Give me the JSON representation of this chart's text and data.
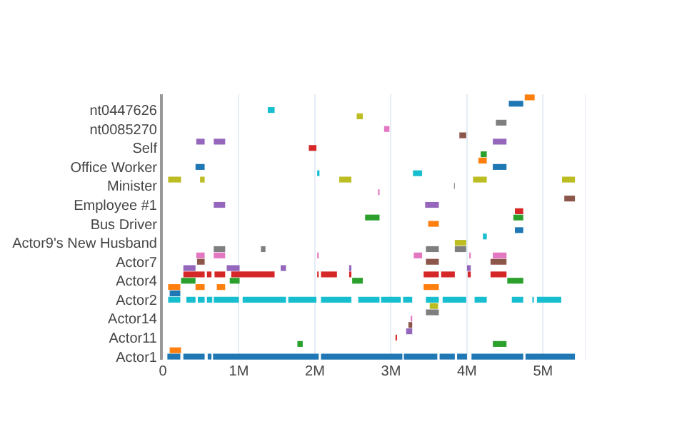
{
  "chart_data": {
    "type": "bar",
    "orientation": "horizontal",
    "grid": "x",
    "categories": [
      null,
      null,
      "nt0447626",
      null,
      null,
      "nt0085270",
      null,
      null,
      "Self",
      null,
      null,
      "Office Worker",
      null,
      null,
      "Minister",
      null,
      null,
      "Employee #1",
      null,
      null,
      "Bus Driver",
      null,
      null,
      "Actor9's New Husband",
      null,
      null,
      "Actor7",
      null,
      null,
      "Actor4",
      null,
      null,
      "Actor2",
      null,
      null,
      "Actor14",
      null,
      null,
      "Actor11",
      null,
      null,
      "Actor1"
    ],
    "xlim": [
      0,
      5560000
    ],
    "xticks": [
      0,
      {
        "value": 1000000,
        "label": "1M"
      },
      {
        "value": 2000000,
        "label": "2M"
      },
      {
        "value": 3000000,
        "label": "3M"
      },
      {
        "value": 4000000,
        "label": "4M"
      },
      {
        "value": 5000000,
        "label": "5M"
      }
    ],
    "series": [
      {
        "colors": [
          "#ff7f0e",
          "#1f77b4",
          "#17becf",
          "#bcbd22",
          "#7f7f7f",
          "#e377c2",
          "#8c564b",
          "#9467bd",
          "#d62728",
          "#2ca02c",
          "#ff7f0e",
          "#1f77b4",
          "#17becf",
          "#bcbd22",
          "#7f7f7f",
          "#e377c2",
          "#8c564b",
          "#9467bd",
          "#d62728",
          "#2ca02c",
          "#ff7f0e",
          "#1f77b4",
          "#17becf",
          "#bcbd22",
          "#7f7f7f",
          "#e377c2",
          "#8c564b",
          "#9467bd",
          "#d62728",
          "#2ca02c",
          "#ff7f0e",
          "#1f77b4",
          "#17becf",
          "#bcbd22",
          "#7f7f7f",
          "#e377c2",
          "#8c564b",
          "#9467bd",
          "#d62728",
          "#2ca02c",
          "#ff7f0e",
          "#1f77b4"
        ],
        "base": [
          4760000,
          4550000,
          1380000,
          2550000,
          4380000,
          2910000,
          3900000,
          440000,
          1920000,
          4180000,
          4150000,
          430000,
          2030000,
          70000,
          3830000,
          2830000,
          5280000,
          670000,
          4630000,
          2660000,
          3490000,
          4630000,
          4210000,
          3840000,
          670000,
          440000,
          450000,
          270000,
          270000,
          240000,
          70000,
          90000,
          70000,
          3510000,
          3460000,
          3260000,
          3230000,
          3200000,
          3060000,
          1770000,
          90000,
          60000
        ],
        "values": [
          130000,
          190000,
          90000,
          80000,
          140000,
          70000,
          90000,
          110000,
          100000,
          80000,
          110000,
          120000,
          30000,
          170000,
          10000,
          20000,
          140000,
          150000,
          110000,
          190000,
          140000,
          110000,
          50000,
          150000,
          150000,
          110000,
          100000,
          160000,
          280000,
          190000,
          160000,
          140000,
          160000,
          110000,
          170000,
          20000,
          50000,
          80000,
          20000,
          70000,
          150000,
          170000
        ]
      },
      {
        "colors": [
          "#ff7f0e",
          "#1f77b4",
          "#17becf",
          "#bcbd22",
          "#7f7f7f",
          "#e377c2",
          "#8c564b",
          "#9467bd",
          "#d62728",
          "#2ca02c",
          "#ff7f0e",
          "#1f77b4",
          "#17becf",
          "#bcbd22",
          "#7f7f7f",
          "#e377c2",
          "#8c564b",
          "#9467bd",
          "#d62728",
          "#2ca02c",
          "#ff7f0e",
          "#1f77b4",
          "#17becf",
          "#bcbd22",
          "#7f7f7f",
          "#e377c2",
          "#8c564b",
          "#9467bd",
          "#d62728",
          "#2ca02c",
          "#ff7f0e",
          "#1f77b4",
          "#17becf",
          "#bcbd22",
          "#7f7f7f",
          "#e377c2",
          "#8c564b",
          "#9467bd",
          "#d62728",
          "#2ca02c",
          "#ff7f0e",
          "#1f77b4"
        ],
        "base": [
          null,
          null,
          null,
          null,
          null,
          null,
          null,
          670000,
          null,
          null,
          null,
          4340000,
          3290000,
          490000,
          null,
          null,
          null,
          3450000,
          null,
          4610000,
          null,
          null,
          null,
          null,
          1290000,
          670000,
          3460000,
          840000,
          580000,
          880000,
          430000,
          null,
          310000,
          null,
          null,
          null,
          null,
          null,
          null,
          4340000,
          null,
          270000
        ],
        "values": [
          null,
          null,
          null,
          null,
          null,
          null,
          null,
          150000,
          null,
          null,
          null,
          180000,
          120000,
          60000,
          null,
          null,
          null,
          180000,
          null,
          130000,
          null,
          null,
          null,
          null,
          60000,
          150000,
          170000,
          170000,
          60000,
          130000,
          120000,
          null,
          120000,
          null,
          null,
          null,
          null,
          null,
          null,
          180000,
          null,
          280000
        ]
      },
      {
        "colors": [
          "#ff7f0e",
          "#1f77b4",
          "#17becf",
          "#bcbd22",
          "#7f7f7f",
          "#e377c2",
          "#8c564b",
          "#9467bd",
          "#d62728",
          "#2ca02c",
          "#ff7f0e",
          "#1f77b4",
          "#17becf",
          "#bcbd22",
          "#7f7f7f",
          "#e377c2",
          "#8c564b",
          "#9467bd",
          "#d62728",
          "#2ca02c",
          "#ff7f0e",
          "#1f77b4",
          "#17becf",
          "#bcbd22",
          "#7f7f7f",
          "#e377c2",
          "#8c564b",
          "#9467bd",
          "#d62728",
          "#2ca02c",
          "#ff7f0e",
          "#1f77b4",
          "#17becf",
          "#bcbd22",
          "#7f7f7f",
          "#e377c2",
          "#8c564b",
          "#9467bd",
          "#d62728",
          "#2ca02c",
          "#ff7f0e",
          "#1f77b4"
        ],
        "base": [
          null,
          null,
          null,
          null,
          null,
          null,
          null,
          4340000,
          null,
          null,
          null,
          null,
          null,
          2320000,
          null,
          null,
          null,
          null,
          null,
          null,
          null,
          null,
          null,
          null,
          3460000,
          2030000,
          4310000,
          1550000,
          680000,
          2490000,
          710000,
          null,
          460000,
          null,
          null,
          null,
          null,
          null,
          null,
          null,
          null,
          590000
        ],
        "values": [
          null,
          null,
          null,
          null,
          null,
          null,
          null,
          180000,
          null,
          null,
          null,
          null,
          null,
          160000,
          null,
          null,
          null,
          null,
          null,
          null,
          null,
          null,
          null,
          null,
          170000,
          20000,
          210000,
          70000,
          140000,
          140000,
          110000,
          null,
          90000,
          null,
          null,
          null,
          null,
          null,
          null,
          null,
          null,
          50000
        ]
      },
      {
        "colors": [
          "#ff7f0e",
          "#1f77b4",
          "#17becf",
          "#bcbd22",
          "#7f7f7f",
          "#e377c2",
          "#8c564b",
          "#9467bd",
          "#d62728",
          "#2ca02c",
          "#ff7f0e",
          "#1f77b4",
          "#17becf",
          "#bcbd22",
          "#7f7f7f",
          "#e377c2",
          "#8c564b",
          "#9467bd",
          "#d62728",
          "#2ca02c",
          "#ff7f0e",
          "#1f77b4",
          "#17becf",
          "#bcbd22",
          "#7f7f7f",
          "#e377c2",
          "#8c564b",
          "#9467bd",
          "#d62728",
          "#2ca02c",
          "#ff7f0e",
          "#1f77b4",
          "#17becf",
          "#bcbd22",
          "#7f7f7f",
          "#e377c2",
          "#8c564b",
          "#9467bd",
          "#d62728",
          "#2ca02c",
          "#ff7f0e",
          "#1f77b4"
        ],
        "base": [
          null,
          null,
          null,
          null,
          null,
          null,
          null,
          null,
          null,
          null,
          null,
          null,
          null,
          4080000,
          null,
          null,
          null,
          null,
          null,
          null,
          null,
          null,
          null,
          null,
          3840000,
          3300000,
          null,
          2450000,
          900000,
          4530000,
          3430000,
          null,
          580000,
          null,
          null,
          null,
          null,
          null,
          null,
          null,
          null,
          660000
        ],
        "values": [
          null,
          null,
          null,
          null,
          null,
          null,
          null,
          null,
          null,
          null,
          null,
          null,
          null,
          180000,
          null,
          null,
          null,
          null,
          null,
          null,
          null,
          null,
          null,
          null,
          150000,
          110000,
          null,
          30000,
          570000,
          210000,
          200000,
          null,
          70000,
          null,
          null,
          null,
          null,
          null,
          null,
          null,
          null,
          1390000
        ]
      },
      {
        "colors": [
          "#ff7f0e",
          "#1f77b4",
          "#17becf",
          "#bcbd22",
          "#7f7f7f",
          "#e377c2",
          "#8c564b",
          "#9467bd",
          "#d62728",
          "#2ca02c",
          "#ff7f0e",
          "#1f77b4",
          "#17becf",
          "#bcbd22",
          "#7f7f7f",
          "#e377c2",
          "#8c564b",
          "#9467bd",
          "#d62728",
          "#2ca02c",
          "#ff7f0e",
          "#1f77b4",
          "#17becf",
          "#bcbd22",
          "#7f7f7f",
          "#e377c2",
          "#8c564b",
          "#9467bd",
          "#d62728",
          "#2ca02c",
          "#ff7f0e",
          "#1f77b4",
          "#17becf",
          "#bcbd22",
          "#7f7f7f",
          "#e377c2",
          "#8c564b",
          "#9467bd",
          "#d62728",
          "#2ca02c",
          "#ff7f0e",
          "#1f77b4"
        ],
        "base": [
          null,
          null,
          null,
          null,
          null,
          null,
          null,
          null,
          null,
          null,
          null,
          null,
          null,
          5250000,
          null,
          null,
          null,
          null,
          null,
          null,
          null,
          null,
          null,
          null,
          null,
          4030000,
          null,
          4000000,
          2030000,
          null,
          null,
          null,
          670000,
          null,
          null,
          null,
          null,
          null,
          null,
          null,
          null,
          2080000
        ],
        "values": [
          null,
          null,
          null,
          null,
          null,
          null,
          null,
          null,
          null,
          null,
          null,
          null,
          null,
          170000,
          null,
          null,
          null,
          null,
          null,
          null,
          null,
          null,
          null,
          null,
          null,
          20000,
          null,
          50000,
          20000,
          null,
          null,
          null,
          330000,
          null,
          null,
          null,
          null,
          null,
          null,
          null,
          null,
          1070000
        ]
      },
      {
        "colors": [
          "#ff7f0e",
          "#1f77b4",
          "#17becf",
          "#bcbd22",
          "#7f7f7f",
          "#e377c2",
          "#8c564b",
          "#9467bd",
          "#d62728",
          "#2ca02c",
          "#ff7f0e",
          "#1f77b4",
          "#17becf",
          "#bcbd22",
          "#7f7f7f",
          "#e377c2",
          "#8c564b",
          "#9467bd",
          "#d62728",
          "#2ca02c",
          "#ff7f0e",
          "#1f77b4",
          "#17becf",
          "#bcbd22",
          "#7f7f7f",
          "#e377c2",
          "#8c564b",
          "#9467bd",
          "#d62728",
          "#2ca02c",
          "#ff7f0e",
          "#1f77b4",
          "#17becf",
          "#bcbd22",
          "#7f7f7f",
          "#e377c2",
          "#8c564b",
          "#9467bd",
          "#d62728",
          "#2ca02c",
          "#ff7f0e",
          "#1f77b4"
        ],
        "base": [
          null,
          null,
          null,
          null,
          null,
          null,
          null,
          null,
          null,
          null,
          null,
          null,
          null,
          null,
          null,
          null,
          null,
          null,
          null,
          null,
          null,
          null,
          null,
          null,
          null,
          4340000,
          null,
          null,
          2080000,
          null,
          null,
          null,
          1050000,
          null,
          null,
          null,
          null,
          null,
          null,
          null,
          null,
          3170000
        ],
        "values": [
          null,
          null,
          null,
          null,
          null,
          null,
          null,
          null,
          null,
          null,
          null,
          null,
          null,
          null,
          null,
          null,
          null,
          null,
          null,
          null,
          null,
          null,
          null,
          null,
          null,
          180000,
          null,
          null,
          210000,
          null,
          null,
          null,
          570000,
          null,
          null,
          null,
          null,
          null,
          null,
          null,
          null,
          440000
        ]
      },
      {
        "colors": [
          "#ff7f0e",
          "#1f77b4",
          "#17becf",
          "#bcbd22",
          "#7f7f7f",
          "#e377c2",
          "#8c564b",
          "#9467bd",
          "#d62728",
          "#2ca02c",
          "#ff7f0e",
          "#1f77b4",
          "#17becf",
          "#bcbd22",
          "#7f7f7f",
          "#e377c2",
          "#8c564b",
          "#9467bd",
          "#d62728",
          "#2ca02c",
          "#ff7f0e",
          "#1f77b4",
          "#17becf",
          "#bcbd22",
          "#7f7f7f",
          "#e377c2",
          "#8c564b",
          "#9467bd",
          "#d62728",
          "#2ca02c",
          "#ff7f0e",
          "#1f77b4",
          "#17becf",
          "#bcbd22",
          "#7f7f7f",
          "#e377c2",
          "#8c564b",
          "#9467bd",
          "#d62728",
          "#2ca02c",
          "#ff7f0e",
          "#1f77b4"
        ],
        "base": [
          null,
          null,
          null,
          null,
          null,
          null,
          null,
          null,
          null,
          null,
          null,
          null,
          null,
          null,
          null,
          null,
          null,
          null,
          null,
          null,
          null,
          null,
          null,
          null,
          null,
          null,
          null,
          null,
          2450000,
          null,
          null,
          null,
          1650000,
          null,
          null,
          null,
          null,
          null,
          null,
          null,
          null,
          3640000
        ],
        "values": [
          null,
          null,
          null,
          null,
          null,
          null,
          null,
          null,
          null,
          null,
          null,
          null,
          null,
          null,
          null,
          null,
          null,
          null,
          null,
          null,
          null,
          null,
          null,
          null,
          null,
          null,
          null,
          null,
          30000,
          null,
          null,
          null,
          370000,
          null,
          null,
          null,
          null,
          null,
          null,
          null,
          null,
          200000
        ]
      },
      {
        "colors": [
          "#ff7f0e",
          "#1f77b4",
          "#17becf",
          "#bcbd22",
          "#7f7f7f",
          "#e377c2",
          "#8c564b",
          "#9467bd",
          "#d62728",
          "#2ca02c",
          "#ff7f0e",
          "#1f77b4",
          "#17becf",
          "#bcbd22",
          "#7f7f7f",
          "#e377c2",
          "#8c564b",
          "#9467bd",
          "#d62728",
          "#2ca02c",
          "#ff7f0e",
          "#1f77b4",
          "#17becf",
          "#bcbd22",
          "#7f7f7f",
          "#e377c2",
          "#8c564b",
          "#9467bd",
          "#d62728",
          "#2ca02c",
          "#ff7f0e",
          "#1f77b4",
          "#17becf",
          "#bcbd22",
          "#7f7f7f",
          "#e377c2",
          "#8c564b",
          "#9467bd",
          "#d62728",
          "#2ca02c",
          "#ff7f0e",
          "#1f77b4"
        ],
        "base": [
          null,
          null,
          null,
          null,
          null,
          null,
          null,
          null,
          null,
          null,
          null,
          null,
          null,
          null,
          null,
          null,
          null,
          null,
          null,
          null,
          null,
          null,
          null,
          null,
          null,
          null,
          null,
          null,
          3430000,
          null,
          null,
          null,
          2080000,
          null,
          null,
          null,
          null,
          null,
          null,
          null,
          null,
          3870000
        ],
        "values": [
          null,
          null,
          null,
          null,
          null,
          null,
          null,
          null,
          null,
          null,
          null,
          null,
          null,
          null,
          null,
          null,
          null,
          null,
          null,
          null,
          null,
          null,
          null,
          null,
          null,
          null,
          null,
          null,
          200000,
          null,
          null,
          null,
          400000,
          null,
          null,
          null,
          null,
          null,
          null,
          null,
          null,
          130000
        ]
      },
      {
        "colors": [
          "#ff7f0e",
          "#1f77b4",
          "#17becf",
          "#bcbd22",
          "#7f7f7f",
          "#e377c2",
          "#8c564b",
          "#9467bd",
          "#d62728",
          "#2ca02c",
          "#ff7f0e",
          "#1f77b4",
          "#17becf",
          "#bcbd22",
          "#7f7f7f",
          "#e377c2",
          "#8c564b",
          "#9467bd",
          "#d62728",
          "#2ca02c",
          "#ff7f0e",
          "#1f77b4",
          "#17becf",
          "#bcbd22",
          "#7f7f7f",
          "#e377c2",
          "#8c564b",
          "#9467bd",
          "#d62728",
          "#2ca02c",
          "#ff7f0e",
          "#1f77b4",
          "#17becf",
          "#bcbd22",
          "#7f7f7f",
          "#e377c2",
          "#8c564b",
          "#9467bd",
          "#d62728",
          "#2ca02c",
          "#ff7f0e",
          "#1f77b4"
        ],
        "base": [
          null,
          null,
          null,
          null,
          null,
          null,
          null,
          null,
          null,
          null,
          null,
          null,
          null,
          null,
          null,
          null,
          null,
          null,
          null,
          null,
          null,
          null,
          null,
          null,
          null,
          null,
          null,
          null,
          3660000,
          null,
          null,
          null,
          2570000,
          null,
          null,
          null,
          null,
          null,
          null,
          null,
          null,
          4060000
        ],
        "values": [
          null,
          null,
          null,
          null,
          null,
          null,
          null,
          null,
          null,
          null,
          null,
          null,
          null,
          null,
          null,
          null,
          null,
          null,
          null,
          null,
          null,
          null,
          null,
          null,
          null,
          null,
          null,
          null,
          180000,
          null,
          null,
          null,
          280000,
          null,
          null,
          null,
          null,
          null,
          null,
          null,
          null,
          680000
        ]
      },
      {
        "colors": [
          "#ff7f0e",
          "#1f77b4",
          "#17becf",
          "#bcbd22",
          "#7f7f7f",
          "#e377c2",
          "#8c564b",
          "#9467bd",
          "#d62728",
          "#2ca02c",
          "#ff7f0e",
          "#1f77b4",
          "#17becf",
          "#bcbd22",
          "#7f7f7f",
          "#e377c2",
          "#8c564b",
          "#9467bd",
          "#d62728",
          "#2ca02c",
          "#ff7f0e",
          "#1f77b4",
          "#17becf",
          "#bcbd22",
          "#7f7f7f",
          "#e377c2",
          "#8c564b",
          "#9467bd",
          "#d62728",
          "#2ca02c",
          "#ff7f0e",
          "#1f77b4",
          "#17becf",
          "#bcbd22",
          "#7f7f7f",
          "#e377c2",
          "#8c564b",
          "#9467bd",
          "#d62728",
          "#2ca02c",
          "#ff7f0e",
          "#1f77b4"
        ],
        "base": [
          null,
          null,
          null,
          null,
          null,
          null,
          null,
          null,
          null,
          null,
          null,
          null,
          null,
          null,
          null,
          null,
          null,
          null,
          null,
          null,
          null,
          null,
          null,
          null,
          null,
          null,
          null,
          null,
          4010000,
          null,
          null,
          null,
          2870000,
          null,
          null,
          null,
          null,
          null,
          null,
          null,
          null,
          4770000
        ],
        "values": [
          null,
          null,
          null,
          null,
          null,
          null,
          null,
          null,
          null,
          null,
          null,
          null,
          null,
          null,
          null,
          null,
          null,
          null,
          null,
          null,
          null,
          null,
          null,
          null,
          null,
          null,
          null,
          null,
          40000,
          null,
          null,
          null,
          260000,
          null,
          null,
          null,
          null,
          null,
          null,
          null,
          null,
          650000
        ]
      },
      {
        "colors": [
          "#ff7f0e",
          "#1f77b4",
          "#17becf",
          "#bcbd22",
          "#7f7f7f",
          "#e377c2",
          "#8c564b",
          "#9467bd",
          "#d62728",
          "#2ca02c",
          "#ff7f0e",
          "#1f77b4",
          "#17becf",
          "#bcbd22",
          "#7f7f7f",
          "#e377c2",
          "#8c564b",
          "#9467bd",
          "#d62728",
          "#2ca02c",
          "#ff7f0e",
          "#1f77b4",
          "#17becf",
          "#bcbd22",
          "#7f7f7f",
          "#e377c2",
          "#8c564b",
          "#9467bd",
          "#d62728",
          "#2ca02c",
          "#ff7f0e",
          "#1f77b4",
          "#17becf",
          "#bcbd22",
          "#7f7f7f",
          "#e377c2",
          "#8c564b",
          "#9467bd",
          "#d62728",
          "#2ca02c",
          "#ff7f0e",
          "#1f77b4"
        ],
        "base": [
          null,
          null,
          null,
          null,
          null,
          null,
          null,
          null,
          null,
          null,
          null,
          null,
          null,
          null,
          null,
          null,
          null,
          null,
          null,
          null,
          null,
          null,
          null,
          null,
          null,
          null,
          null,
          null,
          4310000,
          null,
          null,
          null,
          3160000,
          null,
          null,
          null,
          null,
          null,
          null,
          null,
          null,
          null
        ],
        "values": [
          null,
          null,
          null,
          null,
          null,
          null,
          null,
          null,
          null,
          null,
          null,
          null,
          null,
          null,
          null,
          null,
          null,
          null,
          null,
          null,
          null,
          null,
          null,
          null,
          null,
          null,
          null,
          null,
          210000,
          null,
          null,
          null,
          120000,
          null,
          null,
          null,
          null,
          null,
          null,
          null,
          null,
          null
        ]
      },
      {
        "color": "#17becf",
        "base": [
          null,
          null,
          null,
          null,
          null,
          null,
          null,
          null,
          null,
          null,
          null,
          null,
          null,
          null,
          null,
          null,
          null,
          null,
          null,
          null,
          null,
          null,
          null,
          null,
          null,
          null,
          null,
          null,
          null,
          null,
          null,
          null,
          3460000,
          null,
          null,
          null,
          null,
          null,
          null,
          null,
          null,
          null
        ],
        "values": [
          null,
          null,
          null,
          null,
          null,
          null,
          null,
          null,
          null,
          null,
          null,
          null,
          null,
          null,
          null,
          null,
          null,
          null,
          null,
          null,
          null,
          null,
          null,
          null,
          null,
          null,
          null,
          null,
          null,
          null,
          null,
          null,
          170000,
          null,
          null,
          null,
          null,
          null,
          null,
          null,
          null,
          null
        ]
      },
      {
        "color": "#17becf",
        "base": [
          null,
          null,
          null,
          null,
          null,
          null,
          null,
          null,
          null,
          null,
          null,
          null,
          null,
          null,
          null,
          null,
          null,
          null,
          null,
          null,
          null,
          null,
          null,
          null,
          null,
          null,
          null,
          null,
          null,
          null,
          null,
          null,
          3680000,
          null,
          null,
          null,
          null,
          null,
          null,
          null,
          null,
          null
        ],
        "values": [
          null,
          null,
          null,
          null,
          null,
          null,
          null,
          null,
          null,
          null,
          null,
          null,
          null,
          null,
          null,
          null,
          null,
          null,
          null,
          null,
          null,
          null,
          null,
          null,
          null,
          null,
          null,
          null,
          null,
          null,
          null,
          null,
          310000,
          null,
          null,
          null,
          null,
          null,
          null,
          null,
          null,
          null
        ]
      },
      {
        "color": "#17becf",
        "base": [
          null,
          null,
          null,
          null,
          null,
          null,
          null,
          null,
          null,
          null,
          null,
          null,
          null,
          null,
          null,
          null,
          null,
          null,
          null,
          null,
          null,
          null,
          null,
          null,
          null,
          null,
          null,
          null,
          null,
          null,
          null,
          null,
          4100000,
          null,
          null,
          null,
          null,
          null,
          null,
          null,
          null,
          null
        ],
        "values": [
          null,
          null,
          null,
          null,
          null,
          null,
          null,
          null,
          null,
          null,
          null,
          null,
          null,
          null,
          null,
          null,
          null,
          null,
          null,
          null,
          null,
          null,
          null,
          null,
          null,
          null,
          null,
          null,
          null,
          null,
          null,
          null,
          160000,
          null,
          null,
          null,
          null,
          null,
          null,
          null,
          null,
          null
        ]
      },
      {
        "color": "#17becf",
        "base": [
          null,
          null,
          null,
          null,
          null,
          null,
          null,
          null,
          null,
          null,
          null,
          null,
          null,
          null,
          null,
          null,
          null,
          null,
          null,
          null,
          null,
          null,
          null,
          null,
          null,
          null,
          null,
          null,
          null,
          null,
          null,
          null,
          4590000,
          null,
          null,
          null,
          null,
          null,
          null,
          null,
          null,
          null
        ],
        "values": [
          null,
          null,
          null,
          null,
          null,
          null,
          null,
          null,
          null,
          null,
          null,
          null,
          null,
          null,
          null,
          null,
          null,
          null,
          null,
          null,
          null,
          null,
          null,
          null,
          null,
          null,
          null,
          null,
          null,
          null,
          null,
          null,
          150000,
          null,
          null,
          null,
          null,
          null,
          null,
          null,
          null,
          null
        ]
      },
      {
        "color": "#17becf",
        "base": [
          null,
          null,
          null,
          null,
          null,
          null,
          null,
          null,
          null,
          null,
          null,
          null,
          null,
          null,
          null,
          null,
          null,
          null,
          null,
          null,
          null,
          null,
          null,
          null,
          null,
          null,
          null,
          null,
          null,
          null,
          null,
          null,
          4860000,
          null,
          null,
          null,
          null,
          null,
          null,
          null,
          null,
          null
        ],
        "values": [
          null,
          null,
          null,
          null,
          null,
          null,
          null,
          null,
          null,
          null,
          null,
          null,
          null,
          null,
          null,
          null,
          null,
          null,
          null,
          null,
          null,
          null,
          null,
          null,
          null,
          null,
          null,
          null,
          null,
          null,
          null,
          null,
          20000,
          null,
          null,
          null,
          null,
          null,
          null,
          null,
          null,
          null
        ]
      },
      {
        "color": "#17becf",
        "base": [
          null,
          null,
          null,
          null,
          null,
          null,
          null,
          null,
          null,
          null,
          null,
          null,
          null,
          null,
          null,
          null,
          null,
          null,
          null,
          null,
          null,
          null,
          null,
          null,
          null,
          null,
          null,
          null,
          null,
          null,
          null,
          null,
          4920000,
          null,
          null,
          null,
          null,
          null,
          null,
          null,
          null,
          null
        ],
        "values": [
          null,
          null,
          null,
          null,
          null,
          null,
          null,
          null,
          null,
          null,
          null,
          null,
          null,
          null,
          null,
          null,
          null,
          null,
          null,
          null,
          null,
          null,
          null,
          null,
          null,
          null,
          null,
          null,
          null,
          null,
          null,
          null,
          320000,
          null,
          null,
          null,
          null,
          null,
          null,
          null,
          null,
          null
        ]
      }
    ]
  }
}
